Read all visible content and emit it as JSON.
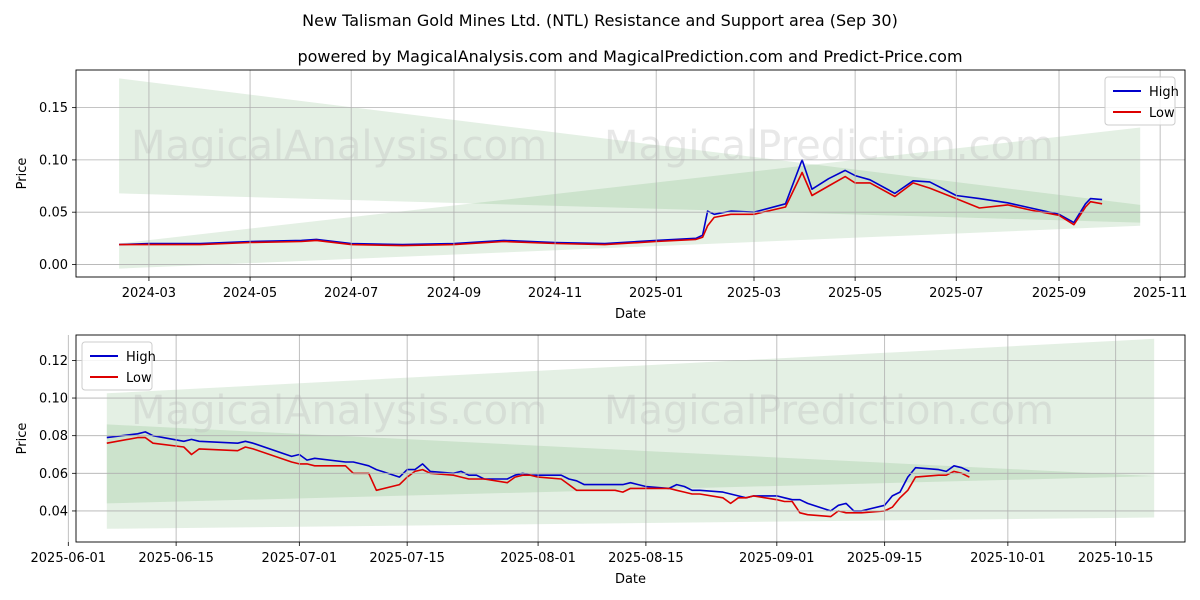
{
  "header": {
    "title": "New Talisman Gold Mines Ltd. (NTL) Resistance and Support area (Sep 30)",
    "subtitle": "powered by MagicalAnalysis.com and MagicalPrediction.com and Predict-Price.com"
  },
  "watermarks": [
    "MagicalAnalysis.com",
    "MagicalPrediction.com"
  ],
  "colors": {
    "high": "#0000cc",
    "low": "#dd0000",
    "band": "#2e8b2e",
    "grid": "#b0b0b0"
  },
  "chart_data": [
    {
      "type": "line",
      "name": "top-panel",
      "xlabel": "Date",
      "ylabel": "Price",
      "grid": true,
      "legend_position": "top-right",
      "xlim": [
        "2024-01-17",
        "2025-11-16"
      ],
      "ylim": [
        -0.012,
        0.186
      ],
      "x_ticks": [
        "2024-03",
        "2024-05",
        "2024-07",
        "2024-09",
        "2024-11",
        "2025-01",
        "2025-03",
        "2025-05",
        "2025-07",
        "2025-09",
        "2025-11"
      ],
      "y_ticks": [
        "0.00",
        "0.05",
        "0.10",
        "0.15"
      ],
      "legend": [
        "High",
        "Low"
      ],
      "bands": [
        {
          "x": [
            "2024-02-12",
            "2025-10-20"
          ],
          "upper": [
            0.178,
            0.057
          ],
          "lower": [
            0.068,
            0.04
          ]
        },
        {
          "x": [
            "2024-02-12",
            "2025-10-20"
          ],
          "upper": [
            0.02,
            0.131
          ],
          "lower": [
            -0.004,
            0.037
          ]
        }
      ],
      "series": [
        {
          "name": "High",
          "x": [
            "2024-02-12",
            "2024-03-01",
            "2024-04-01",
            "2024-05-01",
            "2024-06-01",
            "2024-06-10",
            "2024-07-01",
            "2024-08-01",
            "2024-09-01",
            "2024-10-01",
            "2024-11-01",
            "2024-12-01",
            "2025-01-01",
            "2025-01-25",
            "2025-01-29",
            "2025-02-01",
            "2025-02-05",
            "2025-02-15",
            "2025-03-01",
            "2025-03-20",
            "2025-03-30",
            "2025-04-05",
            "2025-04-15",
            "2025-04-25",
            "2025-05-01",
            "2025-05-10",
            "2025-05-25",
            "2025-06-05",
            "2025-06-15",
            "2025-07-01",
            "2025-07-15",
            "2025-08-01",
            "2025-08-15",
            "2025-09-01",
            "2025-09-10",
            "2025-09-17",
            "2025-09-20",
            "2025-09-27"
          ],
          "values": [
            0.019,
            0.02,
            0.02,
            0.022,
            0.023,
            0.024,
            0.02,
            0.019,
            0.02,
            0.023,
            0.021,
            0.02,
            0.023,
            0.025,
            0.028,
            0.051,
            0.048,
            0.051,
            0.05,
            0.058,
            0.1,
            0.072,
            0.082,
            0.09,
            0.085,
            0.081,
            0.068,
            0.08,
            0.079,
            0.066,
            0.063,
            0.059,
            0.054,
            0.048,
            0.04,
            0.058,
            0.063,
            0.062
          ]
        },
        {
          "name": "Low",
          "x": [
            "2024-02-12",
            "2024-03-01",
            "2024-04-01",
            "2024-05-01",
            "2024-06-01",
            "2024-06-10",
            "2024-07-01",
            "2024-08-01",
            "2024-09-01",
            "2024-10-01",
            "2024-11-01",
            "2024-12-01",
            "2025-01-01",
            "2025-01-25",
            "2025-01-29",
            "2025-02-01",
            "2025-02-05",
            "2025-02-15",
            "2025-03-01",
            "2025-03-20",
            "2025-03-30",
            "2025-04-05",
            "2025-04-15",
            "2025-04-25",
            "2025-05-01",
            "2025-05-10",
            "2025-05-25",
            "2025-06-05",
            "2025-06-15",
            "2025-07-01",
            "2025-07-15",
            "2025-08-01",
            "2025-08-15",
            "2025-09-01",
            "2025-09-10",
            "2025-09-17",
            "2025-09-20",
            "2025-09-27"
          ],
          "values": [
            0.019,
            0.019,
            0.019,
            0.021,
            0.022,
            0.023,
            0.019,
            0.018,
            0.019,
            0.022,
            0.02,
            0.019,
            0.022,
            0.024,
            0.026,
            0.037,
            0.045,
            0.048,
            0.048,
            0.055,
            0.088,
            0.066,
            0.075,
            0.084,
            0.078,
            0.078,
            0.065,
            0.078,
            0.073,
            0.063,
            0.054,
            0.057,
            0.052,
            0.047,
            0.038,
            0.055,
            0.06,
            0.058
          ]
        }
      ]
    },
    {
      "type": "line",
      "name": "bottom-panel",
      "xlabel": "Date",
      "ylabel": "Price",
      "grid": true,
      "legend_position": "top-left",
      "xlim": [
        "2025-06-02",
        "2025-10-24"
      ],
      "ylim": [
        0.0235,
        0.1335
      ],
      "x_ticks": [
        "2025-06-01",
        "2025-06-15",
        "2025-07-01",
        "2025-07-15",
        "2025-08-01",
        "2025-08-15",
        "2025-09-01",
        "2025-09-15",
        "2025-10-01",
        "2025-10-15"
      ],
      "y_ticks": [
        "0.04",
        "0.06",
        "0.08",
        "0.10",
        "0.12"
      ],
      "legend": [
        "High",
        "Low"
      ],
      "bands": [
        {
          "x": [
            "2025-06-06",
            "2025-10-20"
          ],
          "upper": [
            0.1025,
            0.1315
          ],
          "lower": [
            0.044,
            0.0585
          ]
        },
        {
          "x": [
            "2025-06-06",
            "2025-10-20"
          ],
          "upper": [
            0.086,
            0.0585
          ],
          "lower": [
            0.0305,
            0.0365
          ]
        }
      ],
      "series": [
        {
          "name": "High",
          "x": [
            "2025-06-06",
            "2025-06-10",
            "2025-06-11",
            "2025-06-12",
            "2025-06-16",
            "2025-06-17",
            "2025-06-18",
            "2025-06-23",
            "2025-06-24",
            "2025-06-25",
            "2025-06-30",
            "2025-07-01",
            "2025-07-02",
            "2025-07-03",
            "2025-07-07",
            "2025-07-08",
            "2025-07-09",
            "2025-07-10",
            "2025-07-11",
            "2025-07-14",
            "2025-07-15",
            "2025-07-16",
            "2025-07-17",
            "2025-07-18",
            "2025-07-21",
            "2025-07-22",
            "2025-07-23",
            "2025-07-24",
            "2025-07-25",
            "2025-07-28",
            "2025-07-29",
            "2025-07-30",
            "2025-07-31",
            "2025-08-01",
            "2025-08-04",
            "2025-08-05",
            "2025-08-06",
            "2025-08-07",
            "2025-08-08",
            "2025-08-11",
            "2025-08-12",
            "2025-08-13",
            "2025-08-14",
            "2025-08-15",
            "2025-08-18",
            "2025-08-19",
            "2025-08-20",
            "2025-08-21",
            "2025-08-22",
            "2025-08-25",
            "2025-08-26",
            "2025-08-27",
            "2025-08-28",
            "2025-08-29",
            "2025-09-01",
            "2025-09-02",
            "2025-09-03",
            "2025-09-04",
            "2025-09-05",
            "2025-09-08",
            "2025-09-09",
            "2025-09-10",
            "2025-09-11",
            "2025-09-12",
            "2025-09-15",
            "2025-09-16",
            "2025-09-17",
            "2025-09-18",
            "2025-09-19",
            "2025-09-22",
            "2025-09-23",
            "2025-09-24",
            "2025-09-25",
            "2025-09-26"
          ],
          "values": [
            0.079,
            0.081,
            0.082,
            0.08,
            0.077,
            0.078,
            0.077,
            0.076,
            0.077,
            0.076,
            0.069,
            0.07,
            0.067,
            0.068,
            0.066,
            0.066,
            0.065,
            0.064,
            0.062,
            0.058,
            0.062,
            0.062,
            0.065,
            0.061,
            0.06,
            0.061,
            0.059,
            0.059,
            0.057,
            0.057,
            0.059,
            0.06,
            0.059,
            0.059,
            0.059,
            0.057,
            0.056,
            0.054,
            0.054,
            0.054,
            0.054,
            0.055,
            0.054,
            0.053,
            0.052,
            0.054,
            0.053,
            0.051,
            0.051,
            0.05,
            0.049,
            0.048,
            0.047,
            0.048,
            0.048,
            0.047,
            0.046,
            0.046,
            0.044,
            0.04,
            0.043,
            0.044,
            0.04,
            0.04,
            0.043,
            0.048,
            0.05,
            0.058,
            0.063,
            0.062,
            0.061,
            0.064,
            0.063,
            0.061
          ]
        },
        {
          "name": "Low",
          "x": [
            "2025-06-06",
            "2025-06-10",
            "2025-06-11",
            "2025-06-12",
            "2025-06-16",
            "2025-06-17",
            "2025-06-18",
            "2025-06-23",
            "2025-06-24",
            "2025-06-25",
            "2025-06-30",
            "2025-07-01",
            "2025-07-02",
            "2025-07-03",
            "2025-07-07",
            "2025-07-08",
            "2025-07-09",
            "2025-07-10",
            "2025-07-11",
            "2025-07-14",
            "2025-07-15",
            "2025-07-16",
            "2025-07-17",
            "2025-07-18",
            "2025-07-21",
            "2025-07-22",
            "2025-07-23",
            "2025-07-24",
            "2025-07-25",
            "2025-07-28",
            "2025-07-29",
            "2025-07-30",
            "2025-07-31",
            "2025-08-01",
            "2025-08-04",
            "2025-08-05",
            "2025-08-06",
            "2025-08-07",
            "2025-08-08",
            "2025-08-11",
            "2025-08-12",
            "2025-08-13",
            "2025-08-14",
            "2025-08-15",
            "2025-08-18",
            "2025-08-19",
            "2025-08-20",
            "2025-08-21",
            "2025-08-22",
            "2025-08-25",
            "2025-08-26",
            "2025-08-27",
            "2025-08-28",
            "2025-08-29",
            "2025-09-01",
            "2025-09-02",
            "2025-09-03",
            "2025-09-04",
            "2025-09-05",
            "2025-09-08",
            "2025-09-09",
            "2025-09-10",
            "2025-09-11",
            "2025-09-12",
            "2025-09-15",
            "2025-09-16",
            "2025-09-17",
            "2025-09-18",
            "2025-09-19",
            "2025-09-22",
            "2025-09-23",
            "2025-09-24",
            "2025-09-25",
            "2025-09-26"
          ],
          "values": [
            0.076,
            0.079,
            0.079,
            0.076,
            0.074,
            0.07,
            0.073,
            0.072,
            0.074,
            0.073,
            0.066,
            0.065,
            0.065,
            0.064,
            0.064,
            0.06,
            0.06,
            0.06,
            0.051,
            0.054,
            0.058,
            0.061,
            0.062,
            0.06,
            0.059,
            0.058,
            0.057,
            0.057,
            0.057,
            0.055,
            0.058,
            0.059,
            0.059,
            0.058,
            0.057,
            0.054,
            0.051,
            0.051,
            0.051,
            0.051,
            0.05,
            0.052,
            0.052,
            0.052,
            0.052,
            0.051,
            0.05,
            0.049,
            0.049,
            0.047,
            0.044,
            0.047,
            0.047,
            0.048,
            0.046,
            0.045,
            0.045,
            0.039,
            0.038,
            0.037,
            0.04,
            0.039,
            0.039,
            0.039,
            0.04,
            0.042,
            0.047,
            0.051,
            0.058,
            0.059,
            0.059,
            0.061,
            0.06,
            0.058
          ]
        }
      ]
    }
  ]
}
